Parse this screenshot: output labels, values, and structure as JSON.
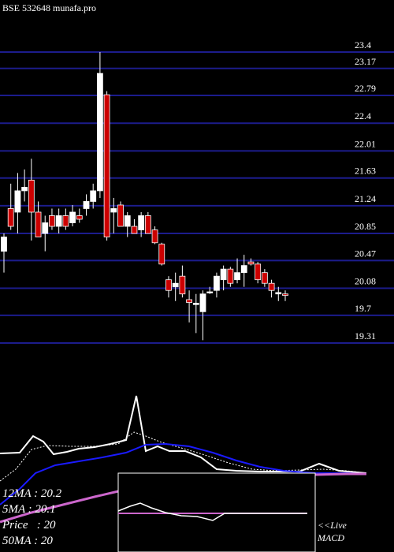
{
  "chart_data": {
    "type": "candlestick",
    "title": "BSE 532648 munafa.pro",
    "ylim": [
      19.31,
      23.4
    ],
    "yticks": [
      23.4,
      23.17,
      22.79,
      22.4,
      22.01,
      21.63,
      21.24,
      20.85,
      20.47,
      20.08,
      19.7,
      19.31
    ],
    "grid": true,
    "up_color": "#ffffff",
    "down_color": "#cc0000",
    "open": [
      20.6,
      21.2,
      21.15,
      21.45,
      21.6,
      21.15,
      20.85,
      21.1,
      20.95,
      21.1,
      21.0,
      21.1,
      21.2,
      21.3,
      21.45,
      22.8,
      21.15,
      21.25,
      20.95,
      20.95,
      20.9,
      21.1,
      20.9,
      20.7,
      20.2,
      20.1,
      20.25,
      19.92,
      19.85,
      19.75,
      20.02,
      20.05,
      20.2,
      20.35,
      20.2,
      20.3,
      20.45,
      20.42,
      20.3,
      20.15,
      20.0,
      20.0
    ],
    "high": [
      20.85,
      21.55,
      21.7,
      21.75,
      21.9,
      21.3,
      21.1,
      21.2,
      21.2,
      21.2,
      21.25,
      21.2,
      21.4,
      21.55,
      23.4,
      22.85,
      21.35,
      21.3,
      21.15,
      21.05,
      21.15,
      21.15,
      20.95,
      20.72,
      20.25,
      20.3,
      20.4,
      20.05,
      20.0,
      20.05,
      20.1,
      20.3,
      20.4,
      20.38,
      20.5,
      20.55,
      20.5,
      20.45,
      20.35,
      20.2,
      20.1,
      20.05
    ],
    "low": [
      20.3,
      20.9,
      20.85,
      21.3,
      20.75,
      20.8,
      20.6,
      20.9,
      20.85,
      20.9,
      20.95,
      21.0,
      21.1,
      21.2,
      21.35,
      20.75,
      20.85,
      20.95,
      20.8,
      20.85,
      20.8,
      20.85,
      20.7,
      20.4,
      19.95,
      19.9,
      19.95,
      19.6,
      19.45,
      19.35,
      20.0,
      19.95,
      20.05,
      20.1,
      20.15,
      20.1,
      20.4,
      20.15,
      20.1,
      19.95,
      19.9,
      19.9
    ],
    "close": [
      20.8,
      20.95,
      21.45,
      21.5,
      21.15,
      20.8,
      21.0,
      20.95,
      21.1,
      20.95,
      21.15,
      21.05,
      21.3,
      21.45,
      23.1,
      20.8,
      21.2,
      20.95,
      21.1,
      20.85,
      21.1,
      20.85,
      20.72,
      20.42,
      20.05,
      20.15,
      20.0,
      19.88,
      19.87,
      20.0,
      20.03,
      20.25,
      20.35,
      20.15,
      20.3,
      20.4,
      20.42,
      20.2,
      20.15,
      20.05,
      20.02,
      19.98
    ],
    "annotations": [
      "12MA : 20.2",
      "5MA : 20.1",
      "Price   : 20",
      "50MA : 20",
      "<<Live",
      "MACD"
    ]
  }
}
